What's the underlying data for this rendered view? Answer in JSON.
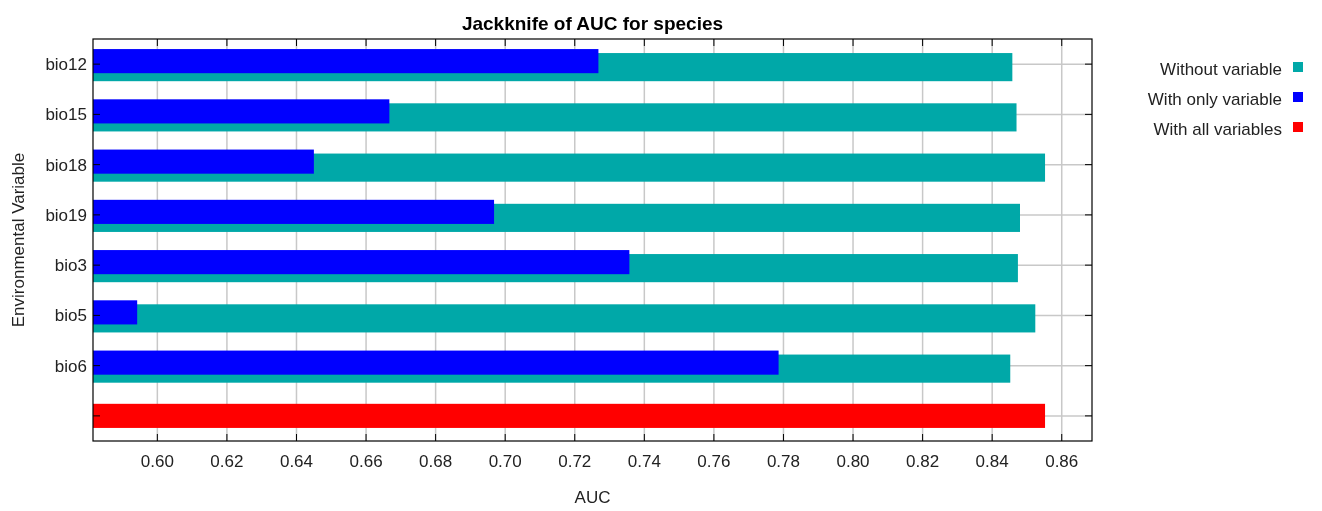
{
  "chart_data": {
    "type": "bar",
    "orientation": "horizontal",
    "title": "Jackknife of AUC for species",
    "xlabel": "AUC",
    "ylabel": "Environmental Variable",
    "categories": [
      "bio12",
      "bio15",
      "bio18",
      "bio19",
      "bio3",
      "bio5",
      "bio6",
      null
    ],
    "series": [
      {
        "name": "Without variable",
        "color": "#00a8a8",
        "values": [
          0.8458,
          0.847,
          0.8552,
          0.848,
          0.8474,
          0.8524,
          0.8452,
          null
        ]
      },
      {
        "name": "With only variable",
        "color": "#0000ff",
        "values": [
          0.7268,
          0.6667,
          0.645,
          0.6968,
          0.7357,
          0.5942,
          0.7786,
          null
        ]
      },
      {
        "name": "With all variables",
        "color": "#ff0000",
        "values": [
          null,
          null,
          null,
          null,
          null,
          null,
          null,
          0.8552
        ]
      }
    ],
    "xlim": [
      0.5815,
      0.8687
    ],
    "xticks": [
      {
        "value": 0.6,
        "label": "0.60"
      },
      {
        "value": 0.62,
        "label": "0.62"
      },
      {
        "value": 0.64,
        "label": "0.64"
      },
      {
        "value": 0.66,
        "label": "0.66"
      },
      {
        "value": 0.68,
        "label": "0.68"
      },
      {
        "value": 0.7,
        "label": "0.70"
      },
      {
        "value": 0.72,
        "label": "0.72"
      },
      {
        "value": 0.74,
        "label": "0.74"
      },
      {
        "value": 0.76,
        "label": "0.76"
      },
      {
        "value": 0.78,
        "label": "0.78"
      },
      {
        "value": 0.8,
        "label": "0.80"
      },
      {
        "value": 0.82,
        "label": "0.82"
      },
      {
        "value": 0.84,
        "label": "0.84"
      },
      {
        "value": 0.86,
        "label": "0.86"
      }
    ],
    "grid": true,
    "legend": "top right"
  }
}
